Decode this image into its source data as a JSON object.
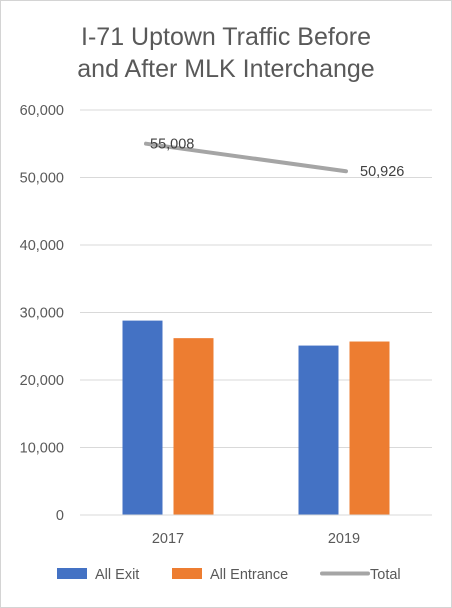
{
  "chart_data": {
    "type": "bar",
    "title_lines": [
      "I-71 Uptown Traffic Before",
      "and After MLK Interchange"
    ],
    "categories": [
      "2017",
      "2019"
    ],
    "series": [
      {
        "name": "All Exit",
        "kind": "bar",
        "color": "#4472C4",
        "values": [
          28800,
          25100
        ]
      },
      {
        "name": "All Entrance",
        "kind": "bar",
        "color": "#ED7D31",
        "values": [
          26200,
          25700
        ]
      },
      {
        "name": "Total",
        "kind": "line",
        "color": "#A5A5A5",
        "values": [
          55008,
          50926
        ]
      }
    ],
    "data_labels": {
      "Total": [
        "55,008",
        "50,926"
      ]
    },
    "y_ticks": [
      0,
      10000,
      20000,
      30000,
      40000,
      50000,
      60000
    ],
    "y_tick_labels": [
      "0",
      "10,000",
      "20,000",
      "30,000",
      "40,000",
      "50,000",
      "60,000"
    ],
    "ylim": [
      0,
      60000
    ],
    "grid": true,
    "legend_position": "bottom"
  }
}
